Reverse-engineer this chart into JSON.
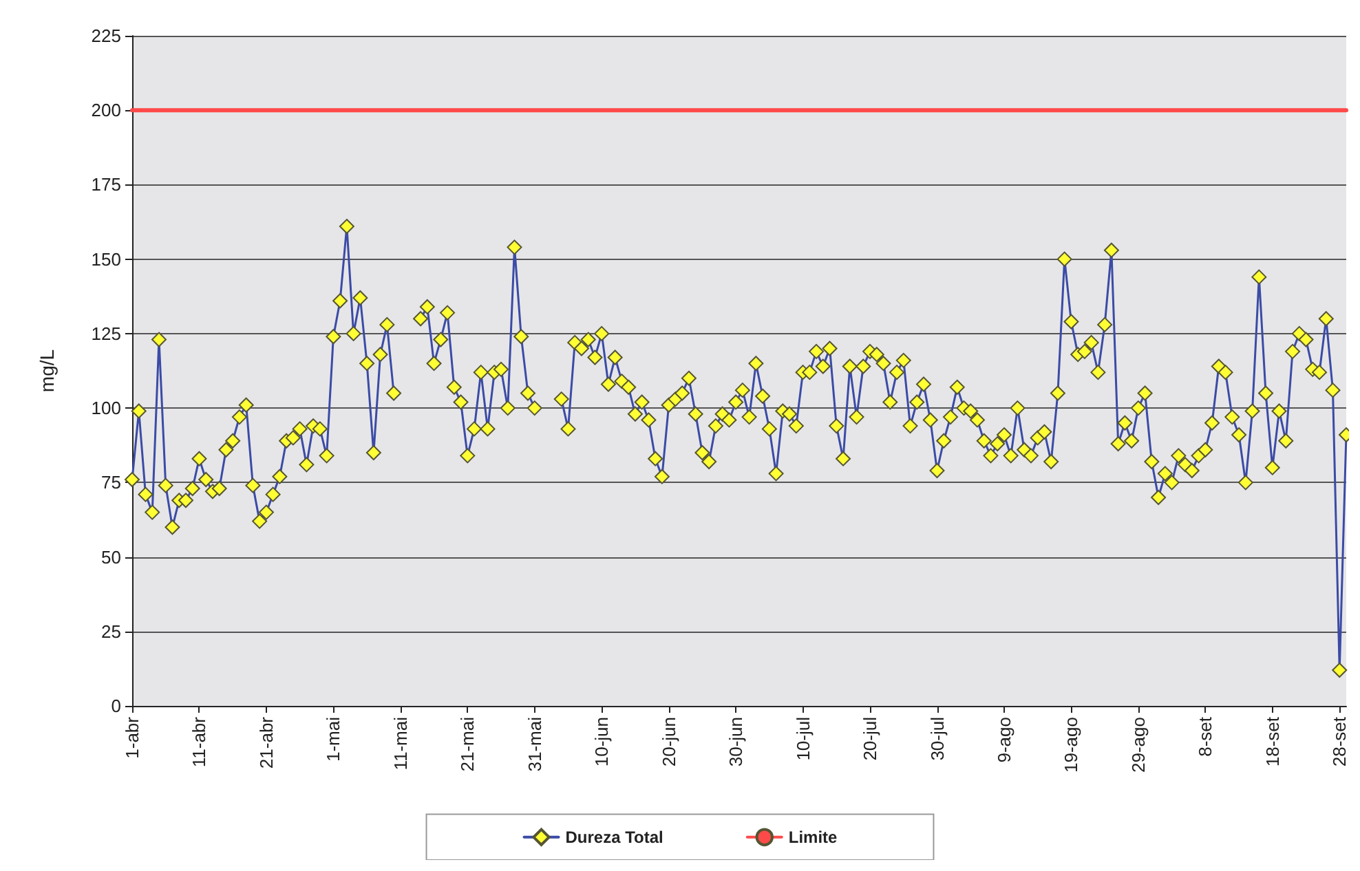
{
  "chart_data": {
    "type": "line",
    "ylabel": "mg/L",
    "x": [
      "--04-01",
      "--04-02",
      "--04-03",
      "--04-04",
      "--04-05",
      "--04-06",
      "--04-07",
      "--04-08",
      "--04-09",
      "--04-10",
      "--04-11",
      "--04-12",
      "--04-13",
      "--04-14",
      "--04-15",
      "--04-16",
      "--04-17",
      "--04-18",
      "--04-19",
      "--04-20",
      "--04-21",
      "--04-22",
      "--04-23",
      "--04-24",
      "--04-25",
      "--04-26",
      "--04-27",
      "--04-28",
      "--04-29",
      "--04-30",
      "--05-01",
      "--05-02",
      "--05-03",
      "--05-04",
      "--05-05",
      "--05-06",
      "--05-07",
      "--05-08",
      "--05-09",
      "--05-10",
      "--05-11",
      "--05-12",
      "--05-13",
      "--05-14",
      "--05-15",
      "--05-16",
      "--05-17",
      "--05-18",
      "--05-19",
      "--05-20",
      "--05-21",
      "--05-22",
      "--05-23",
      "--05-24",
      "--05-25",
      "--05-26",
      "--05-27",
      "--05-28",
      "--05-29",
      "--05-30",
      "--05-31",
      "--06-01",
      "--06-02",
      "--06-03",
      "--06-04",
      "--06-05",
      "--06-06",
      "--06-07",
      "--06-08",
      "--06-09",
      "--06-10",
      "--06-11",
      "--06-12",
      "--06-13",
      "--06-14",
      "--06-15",
      "--06-16",
      "--06-17",
      "--06-18",
      "--06-19",
      "--06-20",
      "--06-21",
      "--06-22",
      "--06-23",
      "--06-24",
      "--06-25",
      "--06-26",
      "--06-27",
      "--06-28",
      "--06-29",
      "--06-30",
      "--07-01",
      "--07-02",
      "--07-03",
      "--07-04",
      "--07-05",
      "--07-06",
      "--07-07",
      "--07-08",
      "--07-09",
      "--07-10",
      "--07-11",
      "--07-12",
      "--07-13",
      "--07-14",
      "--07-15",
      "--07-16",
      "--07-17",
      "--07-18",
      "--07-19",
      "--07-20",
      "--07-21",
      "--07-22",
      "--07-23",
      "--07-24",
      "--07-25",
      "--07-26",
      "--07-27",
      "--07-28",
      "--07-29",
      "--07-30",
      "--07-31",
      "--08-01",
      "--08-02",
      "--08-03",
      "--08-04",
      "--08-05",
      "--08-06",
      "--08-07",
      "--08-08",
      "--08-09",
      "--08-10",
      "--08-11",
      "--08-12",
      "--08-13",
      "--08-14",
      "--08-15",
      "--08-16",
      "--08-17",
      "--08-18",
      "--08-19",
      "--08-20",
      "--08-21",
      "--08-22",
      "--08-23",
      "--08-24",
      "--08-25",
      "--08-26",
      "--08-27",
      "--08-28",
      "--08-29",
      "--08-30",
      "--08-31",
      "--09-01",
      "--09-02",
      "--09-03",
      "--09-04",
      "--09-05",
      "--09-06",
      "--09-07",
      "--09-08",
      "--09-09",
      "--09-10",
      "--09-11",
      "--09-12",
      "--09-13",
      "--09-14",
      "--09-15",
      "--09-16",
      "--09-17",
      "--09-18",
      "--09-19",
      "--09-20",
      "--09-21",
      "--09-22",
      "--09-23",
      "--09-24",
      "--09-25",
      "--09-26",
      "--09-27",
      "--09-28",
      "--09-29"
    ],
    "series": [
      {
        "name": "Dureza Total",
        "color": "#3b4ba6",
        "marker": "diamond",
        "values": [
          76,
          99,
          71,
          65,
          123,
          74,
          60,
          69,
          69,
          73,
          83,
          76,
          72,
          73,
          86,
          89,
          97,
          101,
          74,
          62,
          65,
          71,
          77,
          89,
          90,
          93,
          81,
          94,
          93,
          84,
          124,
          136,
          161,
          125,
          137,
          115,
          85,
          118,
          128,
          105,
          null,
          null,
          null,
          130,
          134,
          115,
          123,
          132,
          107,
          102,
          84,
          93,
          112,
          93,
          112,
          113,
          100,
          154,
          124,
          105,
          100,
          null,
          null,
          null,
          103,
          93,
          122,
          120,
          123,
          117,
          125,
          108,
          117,
          109,
          107,
          98,
          102,
          96,
          83,
          77,
          101,
          103,
          105,
          110,
          98,
          85,
          82,
          94,
          98,
          96,
          102,
          106,
          97,
          115,
          104,
          93,
          78,
          99,
          98,
          94,
          112,
          112,
          119,
          114,
          120,
          94,
          83,
          114,
          97,
          114,
          119,
          118,
          115,
          102,
          112,
          116,
          94,
          102,
          108,
          96,
          79,
          89,
          97,
          107,
          100,
          99,
          96,
          89,
          84,
          88,
          91,
          84,
          100,
          86,
          84,
          90,
          92,
          82,
          105,
          150,
          129,
          118,
          119,
          122,
          112,
          128,
          153,
          88,
          95,
          89,
          100,
          105,
          82,
          70,
          78,
          75,
          84,
          81,
          79,
          84,
          86,
          95,
          114,
          112,
          97,
          91,
          75,
          99,
          144,
          105,
          80,
          99,
          89,
          119,
          125,
          123,
          113,
          112,
          130,
          106,
          12,
          91
        ]
      },
      {
        "name": "Limite",
        "color": "#ff4a4a",
        "marker": "none",
        "x": [
          "--04-01",
          "--09-29"
        ],
        "values": [
          200,
          200
        ]
      }
    ],
    "xlim": [
      "--04-01",
      "--09-29"
    ],
    "xticks": [
      {
        "value": "--04-01",
        "label": "1-abr"
      },
      {
        "value": "--04-11",
        "label": "11-abr"
      },
      {
        "value": "--04-21",
        "label": "21-abr"
      },
      {
        "value": "--05-01",
        "label": "1-mai"
      },
      {
        "value": "--05-11",
        "label": "11-mai"
      },
      {
        "value": "--05-21",
        "label": "21-mai"
      },
      {
        "value": "--05-31",
        "label": "31-mai"
      },
      {
        "value": "--06-10",
        "label": "10-jun"
      },
      {
        "value": "--06-20",
        "label": "20-jun"
      },
      {
        "value": "--06-30",
        "label": "30-jun"
      },
      {
        "value": "--07-10",
        "label": "10-jul"
      },
      {
        "value": "--07-20",
        "label": "20-jul"
      },
      {
        "value": "--07-30",
        "label": "30-jul"
      },
      {
        "value": "--08-09",
        "label": "9-ago"
      },
      {
        "value": "--08-19",
        "label": "19-ago"
      },
      {
        "value": "--08-29",
        "label": "29-ago"
      },
      {
        "value": "--09-08",
        "label": "8-set"
      },
      {
        "value": "--09-18",
        "label": "18-set"
      },
      {
        "value": "--09-28",
        "label": "28-set"
      }
    ],
    "ylim": [
      0,
      225
    ],
    "yticks": [
      0,
      25,
      50,
      75,
      100,
      125,
      150,
      175,
      200,
      225
    ],
    "grid": "y",
    "legend": "bottom",
    "line_style": "solid"
  }
}
